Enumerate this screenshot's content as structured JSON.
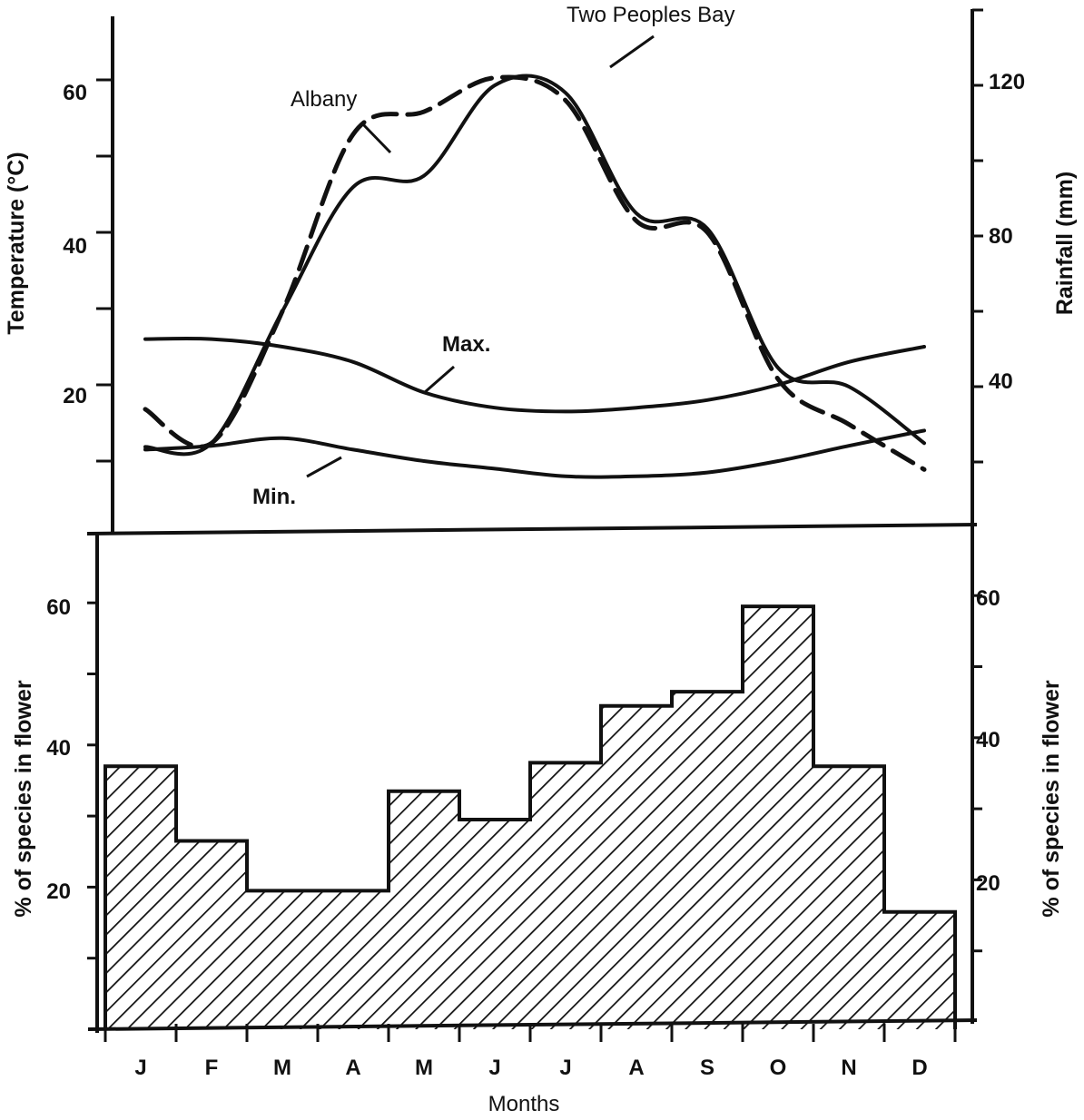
{
  "chart_data": [
    {
      "type": "line",
      "months": [
        "J",
        "F",
        "M",
        "A",
        "M",
        "J",
        "J",
        "A",
        "S",
        "O",
        "N",
        "D"
      ],
      "left_axis": {
        "label": "Temperature (°C)",
        "ticks": [
          "60",
          "40",
          "20"
        ],
        "ylim": [
          0,
          70
        ]
      },
      "right_axis": {
        "label": "Rainfall (mm)",
        "ticks": [
          "120",
          "80",
          "40"
        ],
        "ylim": [
          0,
          140
        ]
      },
      "series": [
        {
          "name": "Albany",
          "axis": "rainfall",
          "style": "solid",
          "values": [
            24,
            25,
            60,
            93,
            96,
            120,
            118,
            86,
            82,
            45,
            40,
            25
          ]
        },
        {
          "name": "Two Peoples Bay",
          "axis": "rainfall",
          "style": "dashed",
          "values": [
            34,
            25,
            60,
            107,
            113,
            122,
            116,
            84,
            81,
            42,
            30,
            18
          ]
        },
        {
          "name": "Max.",
          "axis": "temperature",
          "style": "solid",
          "values": [
            26,
            26,
            25,
            23,
            19,
            17,
            16.5,
            17,
            18,
            20,
            23,
            25
          ]
        },
        {
          "name": "Min.",
          "axis": "temperature",
          "style": "solid",
          "values": [
            11.5,
            12,
            13,
            11.5,
            10,
            9,
            8,
            8,
            8.5,
            10,
            12,
            14
          ]
        }
      ],
      "annotations": [
        "Two Peoples Bay",
        "Albany",
        "Max.",
        "Min."
      ]
    },
    {
      "type": "bar",
      "categories": [
        "J",
        "F",
        "M",
        "A",
        "M",
        "J",
        "J",
        "A",
        "S",
        "O",
        "N",
        "D"
      ],
      "values": [
        37,
        26.5,
        19.5,
        19.5,
        33.5,
        29.5,
        37.5,
        45.5,
        47.5,
        59.5,
        37,
        16.5
      ],
      "fill": "hatched",
      "xlabel": "Months",
      "left_axis": {
        "label": "% of species in flower",
        "ticks": [
          "60",
          "40",
          "20"
        ],
        "ylim": [
          0,
          70
        ]
      },
      "right_axis": {
        "label": "% of species in flower",
        "ticks": [
          "60",
          "40",
          "20"
        ],
        "ylim": [
          0,
          70
        ]
      }
    }
  ],
  "colors": {
    "ink": "#111111",
    "background": "#ffffff"
  }
}
